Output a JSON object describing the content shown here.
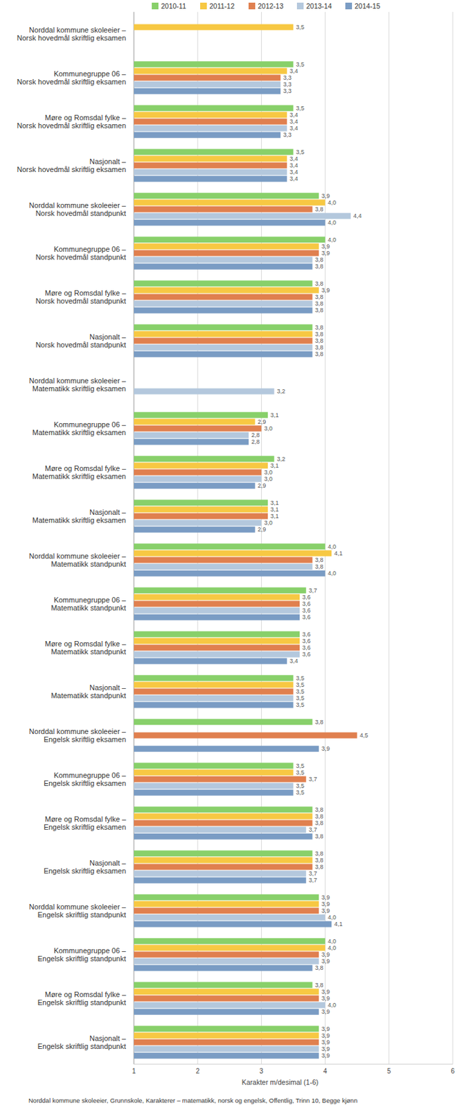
{
  "chart_data": {
    "type": "bar",
    "orientation": "horizontal",
    "subtitle": "Norddal kommune skoleeier, Grunnskole, Karakterer – matematikk, norsk og engelsk, Offentlig, Trinn 10, Begge kjønn",
    "xlabel": "Karakter m/desimal (1-6)",
    "xlim": [
      1,
      6
    ],
    "xticks": [
      1,
      2,
      3,
      4,
      5,
      6
    ],
    "grid": true,
    "legend": "top",
    "data_labels": true,
    "categories": [
      "Norddal kommune skoleeier – Norsk hovedmål skriftlig eksamen",
      "Kommunegruppe 06 – Norsk hovedmål skriftlig eksamen",
      "Møre og Romsdal fylke – Norsk hovedmål skriftlig eksamen",
      "Nasjonalt – Norsk hovedmål skriftlig eksamen",
      "Norddal kommune skoleeier – Norsk hovedmål standpunkt",
      "Kommunegruppe 06 – Norsk hovedmål standpunkt",
      "Møre og Romsdal fylke – Norsk hovedmål standpunkt",
      "Nasjonalt – Norsk hovedmål standpunkt",
      "Norddal kommune skoleeier – Matematikk skriftlig eksamen",
      "Kommunegruppe 06 – Matematikk skriftlig eksamen",
      "Møre og Romsdal fylke – Matematikk skriftlig eksamen",
      "Nasjonalt – Matematikk skriftlig eksamen",
      "Norddal kommune skoleeier – Matematikk standpunkt",
      "Kommunegruppe 06 – Matematikk standpunkt",
      "Møre og Romsdal fylke – Matematikk standpunkt",
      "Nasjonalt – Matematikk standpunkt",
      "Norddal kommune skoleeier – Engelsk skriftlig eksamen",
      "Kommunegruppe 06 – Engelsk skriftlig eksamen",
      "Møre og Romsdal fylke – Engelsk skriftlig eksamen",
      "Nasjonalt – Engelsk skriftlig eksamen",
      "Norddal kommune skoleeier – Engelsk skriftlig standpunkt",
      "Kommunegruppe 06 – Engelsk skriftlig standpunkt",
      "Møre og Romsdal fylke – Engelsk skriftlig standpunkt",
      "Nasjonalt – Engelsk skriftlig standpunkt"
    ],
    "series": [
      {
        "name": "2010-11",
        "color": "#88d06a",
        "values": [
          null,
          3.5,
          3.5,
          3.5,
          3.9,
          4.0,
          3.8,
          3.8,
          null,
          3.1,
          3.2,
          3.1,
          4.0,
          3.7,
          3.6,
          3.5,
          3.8,
          3.5,
          3.8,
          3.8,
          3.9,
          4.0,
          3.8,
          3.9
        ],
        "value_labels": [
          null,
          "3,5",
          "3,5",
          "3,5",
          "3,9",
          "4,0",
          "3,8",
          "3,8",
          null,
          "3,1",
          "3,2",
          "3,1",
          "4,0",
          "3,7",
          "3,6",
          "3,5",
          "3,8",
          "3,5",
          "3,8",
          "3,8",
          "3,9",
          "4,0",
          "3,8",
          "3,9"
        ]
      },
      {
        "name": "2011-12",
        "color": "#f7c843",
        "values": [
          3.5,
          3.4,
          3.4,
          3.4,
          4.0,
          3.9,
          3.9,
          3.8,
          null,
          2.9,
          3.1,
          3.1,
          4.1,
          3.6,
          3.6,
          3.5,
          null,
          3.5,
          3.8,
          3.8,
          3.9,
          4.0,
          3.9,
          3.9
        ],
        "value_labels": [
          "3,5",
          "3,4",
          "3,4",
          "3,4",
          "4,0",
          "3,9",
          "3,9",
          "3,8",
          null,
          "2,9",
          "3,1",
          "3,1",
          "4,1",
          "3,6",
          "3,6",
          "3,5",
          null,
          "3,5",
          "3,8",
          "3,8",
          "3,9",
          "4,0",
          "3,9",
          "3,9"
        ]
      },
      {
        "name": "2012-13",
        "color": "#e0804f",
        "values": [
          null,
          3.3,
          3.4,
          3.4,
          3.8,
          3.9,
          3.8,
          3.8,
          null,
          3.0,
          3.0,
          3.1,
          3.8,
          3.6,
          3.6,
          3.5,
          4.5,
          3.7,
          3.8,
          3.8,
          3.9,
          3.9,
          3.9,
          3.9
        ],
        "value_labels": [
          null,
          "3,3",
          "3,4",
          "3,4",
          "3,8",
          "3,9",
          "3,8",
          "3,8",
          null,
          "3,0",
          "3,0",
          "3,1",
          "3,8",
          "3,6",
          "3,6",
          "3,5",
          "4,5",
          "3,7",
          "3,8",
          "3,8",
          "3,9",
          "3,9",
          "3,9",
          "3,9"
        ]
      },
      {
        "name": "2013-14",
        "color": "#b4c8dd",
        "values": [
          null,
          3.3,
          3.4,
          3.4,
          4.4,
          3.8,
          3.8,
          3.8,
          3.2,
          2.8,
          3.0,
          3.0,
          3.8,
          3.6,
          3.6,
          3.5,
          null,
          3.5,
          3.7,
          3.7,
          4.0,
          3.9,
          4.0,
          3.9
        ],
        "value_labels": [
          null,
          "3,3",
          "3,4",
          "3,4",
          "4,4",
          "3,8",
          "3,8",
          "3,8",
          "3,2",
          "2,8",
          "3,0",
          "3,0",
          "3,8",
          "3,6",
          "3,6",
          "3,5",
          null,
          "3,5",
          "3,7",
          "3,7",
          "4,0",
          "3,9",
          "4,0",
          "3,9"
        ]
      },
      {
        "name": "2014-15",
        "color": "#7a9cc4",
        "values": [
          null,
          3.3,
          3.3,
          3.4,
          4.0,
          3.8,
          3.8,
          3.8,
          null,
          2.8,
          2.9,
          2.9,
          4.0,
          3.6,
          3.4,
          3.5,
          3.9,
          3.5,
          3.8,
          3.7,
          4.1,
          3.8,
          3.9,
          3.9
        ],
        "value_labels": [
          null,
          "3,3",
          "3,3",
          "3,4",
          "4,0",
          "3,8",
          "3,8",
          "3,8",
          null,
          "2,8",
          "2,9",
          "2,9",
          "4,0",
          "3,6",
          "3,4",
          "3,5",
          "3,9",
          "3,5",
          "3,8",
          "3,7",
          "4,1",
          "3,8",
          "3,9",
          "3,9"
        ]
      }
    ]
  }
}
